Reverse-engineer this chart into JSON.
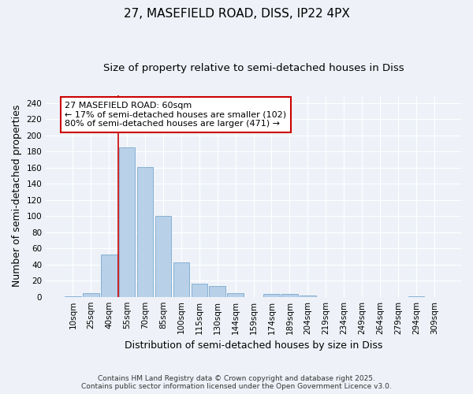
{
  "title": "27, MASEFIELD ROAD, DISS, IP22 4PX",
  "subtitle": "Size of property relative to semi-detached houses in Diss",
  "xlabel": "Distribution of semi-detached houses by size in Diss",
  "ylabel": "Number of semi-detached properties",
  "categories": [
    "10sqm",
    "25sqm",
    "40sqm",
    "55sqm",
    "70sqm",
    "85sqm",
    "100sqm",
    "115sqm",
    "130sqm",
    "144sqm",
    "159sqm",
    "174sqm",
    "189sqm",
    "204sqm",
    "219sqm",
    "234sqm",
    "249sqm",
    "264sqm",
    "279sqm",
    "294sqm",
    "309sqm"
  ],
  "values": [
    1,
    5,
    52,
    185,
    161,
    100,
    43,
    16,
    13,
    5,
    0,
    4,
    4,
    2,
    0,
    0,
    0,
    0,
    0,
    1,
    0
  ],
  "bar_color": "#b8d0e8",
  "bar_edge_color": "#7aaacf",
  "vline_x": 2.5,
  "vline_color": "#cc0000",
  "annotation_box_text": "27 MASEFIELD ROAD: 60sqm\n← 17% of semi-detached houses are smaller (102)\n80% of semi-detached houses are larger (471) →",
  "annotation_box_color": "#cc0000",
  "ylim": [
    0,
    250
  ],
  "yticks": [
    0,
    20,
    40,
    60,
    80,
    100,
    120,
    140,
    160,
    180,
    200,
    220,
    240
  ],
  "background_color": "#eef2f8",
  "grid_color": "#ffffff",
  "footer": "Contains HM Land Registry data © Crown copyright and database right 2025.\nContains public sector information licensed under the Open Government Licence v3.0.",
  "title_fontsize": 11,
  "subtitle_fontsize": 9.5,
  "axis_label_fontsize": 9,
  "tick_fontsize": 7.5,
  "annotation_fontsize": 8,
  "footer_fontsize": 6.5
}
